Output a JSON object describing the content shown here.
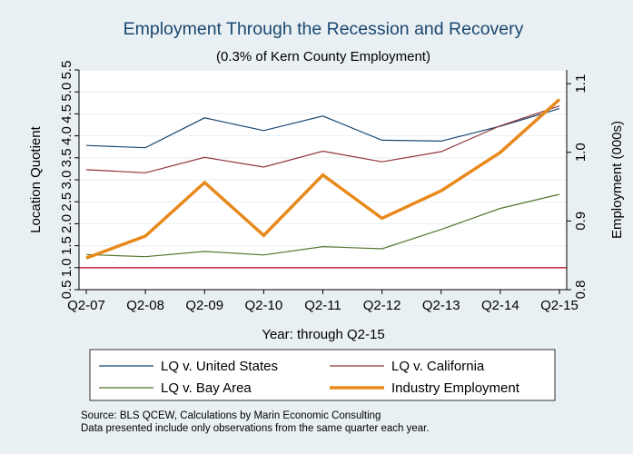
{
  "chart_data": {
    "type": "line",
    "title": "Employment Through the Recession and Recovery",
    "subtitle": "(0.3% of Kern County Employment)",
    "xlabel": "Year: through Q2-15",
    "ylabel_left": "Location Quotient",
    "ylabel_right": "Employment (000s)",
    "categories": [
      "Q2-07",
      "Q2-08",
      "Q2-09",
      "Q2-10",
      "Q2-11",
      "Q2-12",
      "Q2-13",
      "Q2-14",
      "Q2-15"
    ],
    "ylim_left": [
      0.5,
      5.5
    ],
    "yticks_left": [
      "0.5",
      "1.0",
      "1.5",
      "2.0",
      "2.5",
      "3.0",
      "3.5",
      "4.0",
      "4.5",
      "5.0",
      "5.5"
    ],
    "ylim_right": [
      0.8,
      1.12
    ],
    "yticks_right": [
      "0.8",
      "0.9",
      "1.0",
      "1.1"
    ],
    "reference_line": {
      "axis": "left",
      "value": 1.0,
      "color": "#c4112f"
    },
    "series": [
      {
        "name": "LQ v. United States",
        "axis": "left",
        "color": "#1a476f",
        "width": 1.2,
        "values": [
          3.78,
          3.73,
          4.41,
          4.12,
          4.45,
          3.9,
          3.88,
          4.22,
          4.62
        ]
      },
      {
        "name": "LQ v. California",
        "axis": "left",
        "color": "#90353b",
        "width": 1.2,
        "values": [
          3.23,
          3.16,
          3.51,
          3.29,
          3.65,
          3.41,
          3.64,
          4.23,
          4.68
        ]
      },
      {
        "name": "LQ v. Bay Area",
        "axis": "left",
        "color": "#55752f",
        "width": 1.2,
        "values": [
          1.3,
          1.25,
          1.37,
          1.29,
          1.48,
          1.43,
          1.87,
          2.35,
          2.67
        ]
      },
      {
        "name": "Industry Employment",
        "axis": "right",
        "color": "#e8891c",
        "width": 3.5,
        "values": [
          0.846,
          0.878,
          0.956,
          0.879,
          0.967,
          0.904,
          0.944,
          1.0,
          1.077
        ]
      }
    ],
    "legend_placement": "bottom",
    "grid": true
  },
  "source_note": {
    "line1": "Source: BLS QCEW, Calculations by Marin Economic Consulting",
    "line2": "Data presented include only observations from the same quarter each year."
  }
}
